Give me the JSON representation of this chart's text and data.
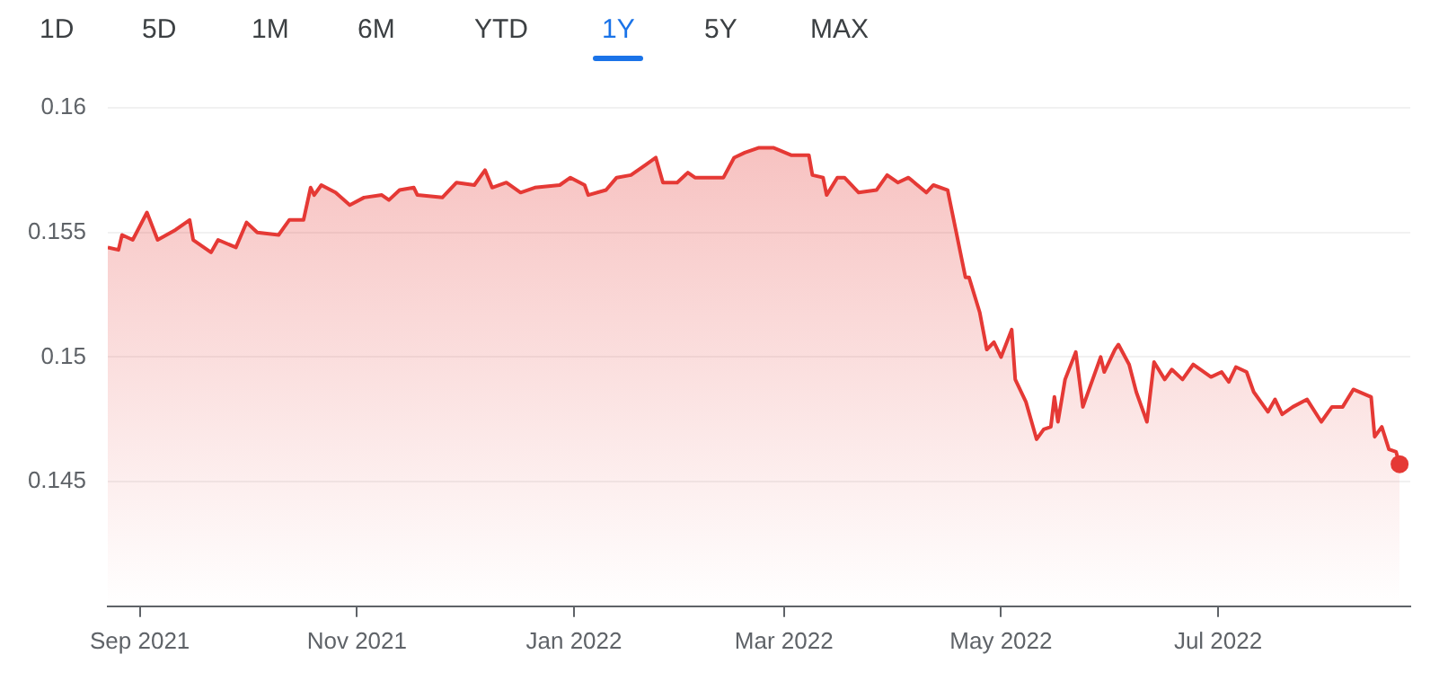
{
  "chart_data": {
    "type": "area",
    "annotations": [
      "1D",
      "5D",
      "1M",
      "6M",
      "YTD",
      "1Y",
      "5Y",
      "MAX"
    ],
    "x": [
      "2021-08-23",
      "2021-08-26",
      "2021-08-27",
      "2021-08-30",
      "2021-09-03",
      "2021-09-06",
      "2021-09-11",
      "2021-09-15",
      "2021-09-16",
      "2021-09-21",
      "2021-09-23",
      "2021-09-28",
      "2021-10-01",
      "2021-10-04",
      "2021-10-10",
      "2021-10-13",
      "2021-10-17",
      "2021-10-19",
      "2021-10-20",
      "2021-10-22",
      "2021-10-26",
      "2021-10-30",
      "2021-11-03",
      "2021-11-08",
      "2021-11-10",
      "2021-11-13",
      "2021-11-17",
      "2021-11-18",
      "2021-11-25",
      "2021-11-29",
      "2021-12-04",
      "2021-12-07",
      "2021-12-09",
      "2021-12-13",
      "2021-12-17",
      "2021-12-21",
      "2021-12-28",
      "2021-12-31",
      "2022-01-04",
      "2022-01-05",
      "2022-01-10",
      "2022-01-13",
      "2022-01-17",
      "2022-01-21",
      "2022-01-24",
      "2022-01-26",
      "2022-01-30",
      "2022-02-02",
      "2022-02-04",
      "2022-02-12",
      "2022-02-15",
      "2022-02-18",
      "2022-02-22",
      "2022-02-26",
      "2022-03-03",
      "2022-03-08",
      "2022-03-09",
      "2022-03-12",
      "2022-03-13",
      "2022-03-16",
      "2022-03-18",
      "2022-03-22",
      "2022-03-27",
      "2022-03-30",
      "2022-04-02",
      "2022-04-05",
      "2022-04-10",
      "2022-04-12",
      "2022-04-16",
      "2022-04-21",
      "2022-04-22",
      "2022-04-25",
      "2022-04-27",
      "2022-04-29",
      "2022-05-01",
      "2022-05-04",
      "2022-05-05",
      "2022-05-08",
      "2022-05-11",
      "2022-05-13",
      "2022-05-15",
      "2022-05-16",
      "2022-05-17",
      "2022-05-19",
      "2022-05-22",
      "2022-05-24",
      "2022-05-26",
      "2022-05-29",
      "2022-05-30",
      "2022-06-02",
      "2022-06-03",
      "2022-06-06",
      "2022-06-08",
      "2022-06-11",
      "2022-06-13",
      "2022-06-16",
      "2022-06-18",
      "2022-06-21",
      "2022-06-24",
      "2022-06-29",
      "2022-07-02",
      "2022-07-04",
      "2022-07-06",
      "2022-07-09",
      "2022-07-11",
      "2022-07-15",
      "2022-07-17",
      "2022-07-19",
      "2022-07-22",
      "2022-07-26",
      "2022-07-30",
      "2022-08-02",
      "2022-08-05",
      "2022-08-08",
      "2022-08-13",
      "2022-08-14",
      "2022-08-16",
      "2022-08-18",
      "2022-08-20",
      "2022-08-21"
    ],
    "series": [
      {
        "color": "#e53935",
        "values": [
          0.1544,
          0.1543,
          0.1549,
          0.1547,
          0.1558,
          0.1547,
          0.1551,
          0.1555,
          0.1547,
          0.1542,
          0.1547,
          0.1544,
          0.1554,
          0.155,
          0.1549,
          0.1555,
          0.1555,
          0.1568,
          0.1565,
          0.1569,
          0.1566,
          0.1561,
          0.1564,
          0.1565,
          0.1563,
          0.1567,
          0.1568,
          0.1565,
          0.1564,
          0.157,
          0.1569,
          0.1575,
          0.1568,
          0.157,
          0.1566,
          0.1568,
          0.1569,
          0.1572,
          0.1569,
          0.1565,
          0.1567,
          0.1572,
          0.1573,
          0.1577,
          0.158,
          0.157,
          0.157,
          0.1574,
          0.1572,
          0.1572,
          0.158,
          0.1582,
          0.1584,
          0.1584,
          0.1581,
          0.1581,
          0.1573,
          0.1572,
          0.1565,
          0.1572,
          0.1572,
          0.1566,
          0.1567,
          0.1573,
          0.157,
          0.1572,
          0.1566,
          0.1569,
          0.1567,
          0.1532,
          0.1532,
          0.1518,
          0.1503,
          0.1506,
          0.15,
          0.1511,
          0.1491,
          0.1482,
          0.1467,
          0.1471,
          0.1472,
          0.1484,
          0.1474,
          0.1491,
          0.1502,
          0.148,
          0.1488,
          0.15,
          0.1494,
          0.1503,
          0.1505,
          0.1497,
          0.1486,
          0.1474,
          0.1498,
          0.1491,
          0.1495,
          0.1491,
          0.1497,
          0.1492,
          0.1494,
          0.149,
          0.1496,
          0.1494,
          0.1486,
          0.1478,
          0.1483,
          0.1477,
          0.148,
          0.1483,
          0.1474,
          0.148,
          0.148,
          0.1487,
          0.1484,
          0.1468,
          0.1472,
          0.1463,
          0.1462,
          0.1457
        ]
      }
    ],
    "xlim": [
      "2021-08-23",
      "2022-08-24"
    ],
    "xticks": [
      {
        "value": "2021-09-01",
        "label": "Sep 2021"
      },
      {
        "value": "2021-11-01",
        "label": "Nov 2021"
      },
      {
        "value": "2022-01-01",
        "label": "Jan 2022"
      },
      {
        "value": "2022-03-01",
        "label": "Mar 2022"
      },
      {
        "value": "2022-05-01",
        "label": "May 2022"
      },
      {
        "value": "2022-07-01",
        "label": "Jul 2022"
      }
    ],
    "ylim": [
      0.14,
      0.16
    ],
    "yticks": [
      0.145,
      0.15,
      0.155,
      0.16
    ],
    "grid": "y"
  }
}
